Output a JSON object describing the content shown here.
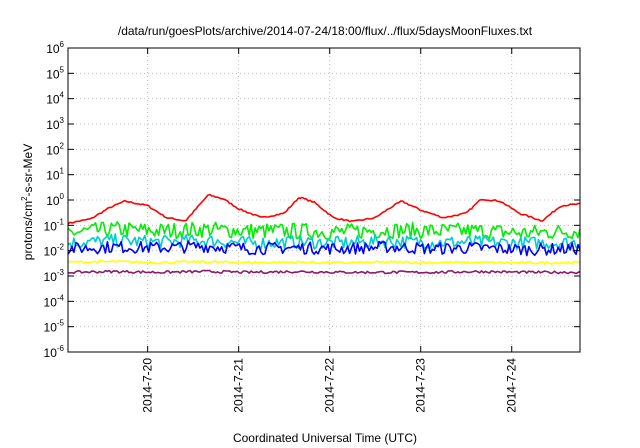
{
  "chart_data": {
    "type": "line",
    "title": "/data/run/goesPlots/archive/2014-07-24/18:00/flux/../flux/5daysMoonFluxes.txt",
    "xlabel": "Coordinated Universal Time (UTC)",
    "ylabel": {
      "main": "protons/cm",
      "sup": "2",
      "rest": "-s-sr-MeV"
    },
    "y_scale": "log",
    "ylim": [
      1e-06,
      1000000.0
    ],
    "y_ticks": [
      {
        "base": "10",
        "exp": "-6",
        "value": 1e-06
      },
      {
        "base": "10",
        "exp": "-5",
        "value": 1e-05
      },
      {
        "base": "10",
        "exp": "-4",
        "value": 0.0001
      },
      {
        "base": "10",
        "exp": "-3",
        "value": 0.001
      },
      {
        "base": "10",
        "exp": "-2",
        "value": 0.01
      },
      {
        "base": "10",
        "exp": "-1",
        "value": 0.1
      },
      {
        "base": "10",
        "exp": "0",
        "value": 1.0
      },
      {
        "base": "10",
        "exp": "1",
        "value": 10.0
      },
      {
        "base": "10",
        "exp": "2",
        "value": 100.0
      },
      {
        "base": "10",
        "exp": "3",
        "value": 1000.0
      },
      {
        "base": "10",
        "exp": "4",
        "value": 10000.0
      },
      {
        "base": "10",
        "exp": "5",
        "value": 100000.0
      },
      {
        "base": "10",
        "exp": "6",
        "value": 1000000.0
      }
    ],
    "xlim": [
      "2014-07-19T03:00",
      "2014-07-24T18:00"
    ],
    "x_ticks": [
      "2014-7-20",
      "2014-7-21",
      "2014-7-22",
      "2014-7-23",
      "2014-7-24"
    ],
    "grid": true,
    "series": [
      {
        "color": "#ff0000",
        "x": [
          "2014-07-19T03:00",
          "2014-07-19T09:00",
          "2014-07-19T14:00",
          "2014-07-19T18:00",
          "2014-07-20T00:00",
          "2014-07-20T05:00",
          "2014-07-20T10:00",
          "2014-07-20T16:00",
          "2014-07-20T20:00",
          "2014-07-21T00:00",
          "2014-07-21T06:00",
          "2014-07-21T12:00",
          "2014-07-21T16:00",
          "2014-07-21T20:00",
          "2014-07-22T01:00",
          "2014-07-22T06:00",
          "2014-07-22T12:00",
          "2014-07-22T16:00",
          "2014-07-22T19:00",
          "2014-07-23T00:00",
          "2014-07-23T06:00",
          "2014-07-23T12:00",
          "2014-07-23T16:00",
          "2014-07-23T21:00",
          "2014-07-24T02:00",
          "2014-07-24T08:00",
          "2014-07-24T13:00",
          "2014-07-24T18:00"
        ],
        "y": [
          0.12,
          0.18,
          0.5,
          0.9,
          0.6,
          0.2,
          0.15,
          1.6,
          1.1,
          0.45,
          0.2,
          0.3,
          1.3,
          0.8,
          0.2,
          0.14,
          0.2,
          0.5,
          0.9,
          0.4,
          0.2,
          0.3,
          1.1,
          0.9,
          0.3,
          0.15,
          0.6,
          0.7
        ]
      },
      {
        "color": "#00ee00",
        "x": [
          "2014-07-19T03:00",
          "2014-07-19T15:00",
          "2014-07-20T03:00",
          "2014-07-20T15:00",
          "2014-07-21T03:00",
          "2014-07-21T15:00",
          "2014-07-22T03:00",
          "2014-07-22T15:00",
          "2014-07-23T03:00",
          "2014-07-23T15:00",
          "2014-07-24T03:00",
          "2014-07-24T18:00"
        ],
        "y": [
          0.05,
          0.07,
          0.06,
          0.07,
          0.06,
          0.06,
          0.055,
          0.065,
          0.06,
          0.06,
          0.05,
          0.06
        ]
      },
      {
        "color": "#00cccc",
        "x": [
          "2014-07-19T03:00",
          "2014-07-19T15:00",
          "2014-07-20T03:00",
          "2014-07-20T15:00",
          "2014-07-21T03:00",
          "2014-07-21T15:00",
          "2014-07-22T03:00",
          "2014-07-22T15:00",
          "2014-07-23T03:00",
          "2014-07-23T15:00",
          "2014-07-24T03:00",
          "2014-07-24T18:00"
        ],
        "y": [
          0.02,
          0.025,
          0.022,
          0.025,
          0.02,
          0.022,
          0.02,
          0.024,
          0.021,
          0.022,
          0.02,
          0.021
        ]
      },
      {
        "color": "#0000ff",
        "x": [
          "2014-07-19T03:00",
          "2014-07-19T15:00",
          "2014-07-20T03:00",
          "2014-07-20T15:00",
          "2014-07-21T03:00",
          "2014-07-21T15:00",
          "2014-07-22T03:00",
          "2014-07-22T15:00",
          "2014-07-23T03:00",
          "2014-07-23T15:00",
          "2014-07-24T03:00",
          "2014-07-24T18:00"
        ],
        "y": [
          0.012,
          0.014,
          0.013,
          0.015,
          0.012,
          0.013,
          0.012,
          0.014,
          0.012,
          0.013,
          0.011,
          0.012
        ]
      },
      {
        "color": "#ffff00",
        "x": [
          "2014-07-19T03:00",
          "2014-07-19T15:00",
          "2014-07-20T03:00",
          "2014-07-20T15:00",
          "2014-07-21T03:00",
          "2014-07-21T15:00",
          "2014-07-22T03:00",
          "2014-07-22T15:00",
          "2014-07-23T03:00",
          "2014-07-23T15:00",
          "2014-07-24T03:00",
          "2014-07-24T18:00"
        ],
        "y": [
          0.0035,
          0.0037,
          0.0034,
          0.0036,
          0.0034,
          0.0035,
          0.0033,
          0.0035,
          0.0034,
          0.0034,
          0.0033,
          0.0034
        ]
      },
      {
        "color": "#8b1a6b",
        "x": [
          "2014-07-19T03:00",
          "2014-07-19T15:00",
          "2014-07-20T03:00",
          "2014-07-20T15:00",
          "2014-07-21T03:00",
          "2014-07-21T15:00",
          "2014-07-22T03:00",
          "2014-07-22T15:00",
          "2014-07-23T03:00",
          "2014-07-23T15:00",
          "2014-07-24T03:00",
          "2014-07-24T18:00"
        ],
        "y": [
          0.0014,
          0.0015,
          0.0014,
          0.0015,
          0.0014,
          0.0015,
          0.0014,
          0.0014,
          0.0014,
          0.0015,
          0.0014,
          0.0014
        ]
      }
    ]
  }
}
